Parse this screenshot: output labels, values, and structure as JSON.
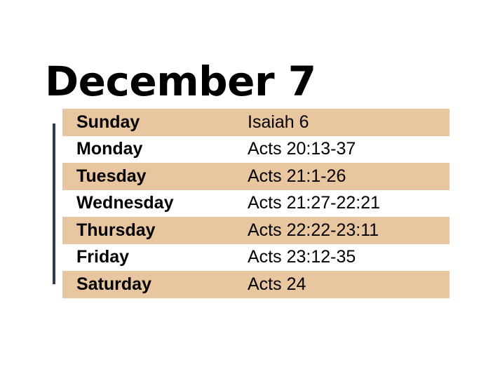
{
  "title": "December 7",
  "colors": {
    "row_shade": "#e8c7a0",
    "accent_bar": "#2e3b4a"
  },
  "schedule": [
    {
      "day": "Sunday",
      "reading": "Isaiah 6"
    },
    {
      "day": "Monday",
      "reading": "Acts 20:13-37"
    },
    {
      "day": "Tuesday",
      "reading": "Acts 21:1-26"
    },
    {
      "day": "Wednesday",
      "reading": "Acts 21:27-22:21"
    },
    {
      "day": "Thursday",
      "reading": "Acts 22:22-23:11"
    },
    {
      "day": "Friday",
      "reading": "Acts 23:12-35"
    },
    {
      "day": "Saturday",
      "reading": "Acts 24"
    }
  ]
}
